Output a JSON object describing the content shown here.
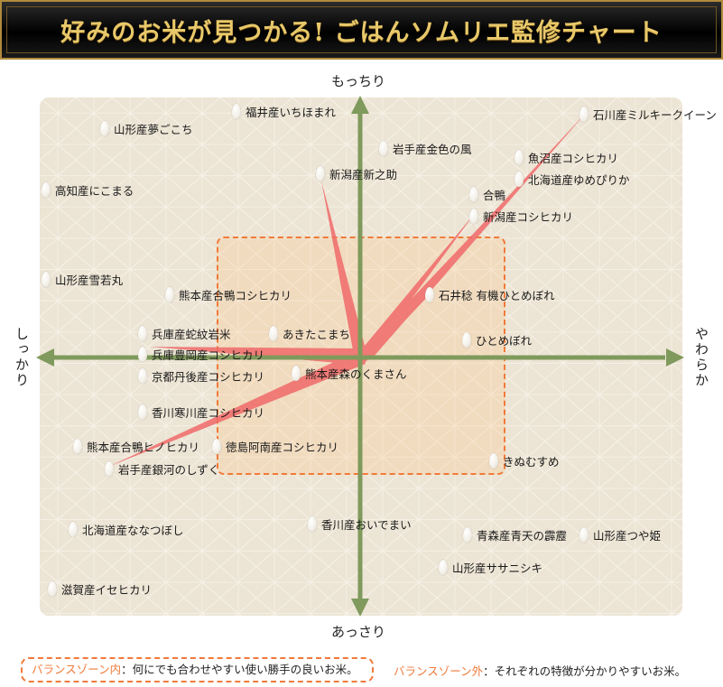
{
  "header": {
    "title": "好みのお米が見つかる! ごはんソムリエ監修チャート"
  },
  "axes": {
    "top": "もっちり",
    "bottom": "あっさり",
    "left": "しっかり",
    "right": "やわらか"
  },
  "colors": {
    "axis": "#7f9a5c",
    "zone": "#f07a3a",
    "wedge": "#f06a6a",
    "title": "#e8c86a"
  },
  "items": [
    {
      "label": "福井産いちほまれ"
    },
    {
      "label": "山形産夢ごこち"
    },
    {
      "label": "石川産ミルキークイーン"
    },
    {
      "label": "岩手産金色の風"
    },
    {
      "label": "魚沼産コシヒカリ"
    },
    {
      "label": "新潟産新之助"
    },
    {
      "label": "北海道産ゆめぴりか"
    },
    {
      "label": "高知産にこまる"
    },
    {
      "label": "合鴨"
    },
    {
      "label": "新潟産コシヒカリ"
    },
    {
      "label": "山形産雪若丸"
    },
    {
      "label": "熊本産合鴨コシヒカリ"
    },
    {
      "label": "石井稔 有機ひとめぼれ"
    },
    {
      "label": "兵庫産蛇紋岩米"
    },
    {
      "label": "あきたこまち"
    },
    {
      "label": "ひとめぼれ"
    },
    {
      "label": "兵庫豊岡産コシヒカリ"
    },
    {
      "label": "京都丹後産コシヒカリ"
    },
    {
      "label": "熊本産森のくまさん"
    },
    {
      "label": "香川寒川産コシヒカリ"
    },
    {
      "label": "熊本産合鴨ヒノヒカリ"
    },
    {
      "label": "徳島阿南産コシヒカリ"
    },
    {
      "label": "岩手産銀河のしずく"
    },
    {
      "label": "きぬむすめ"
    },
    {
      "label": "北海道産ななつぼし"
    },
    {
      "label": "香川産おいでまい"
    },
    {
      "label": "青森産青天の霹靂"
    },
    {
      "label": "山形産つや姫"
    },
    {
      "label": "山形産ササニシキ"
    },
    {
      "label": "滋賀産イセヒカリ"
    }
  ],
  "legend": {
    "inside_key": "バランスゾーン内",
    "inside_text": "：何にでも合わせやすい使い勝手の良いお米。",
    "outside_key": "バランスゾーン外",
    "outside_text": "：それぞれの特徴が分かりやすいお米。"
  }
}
